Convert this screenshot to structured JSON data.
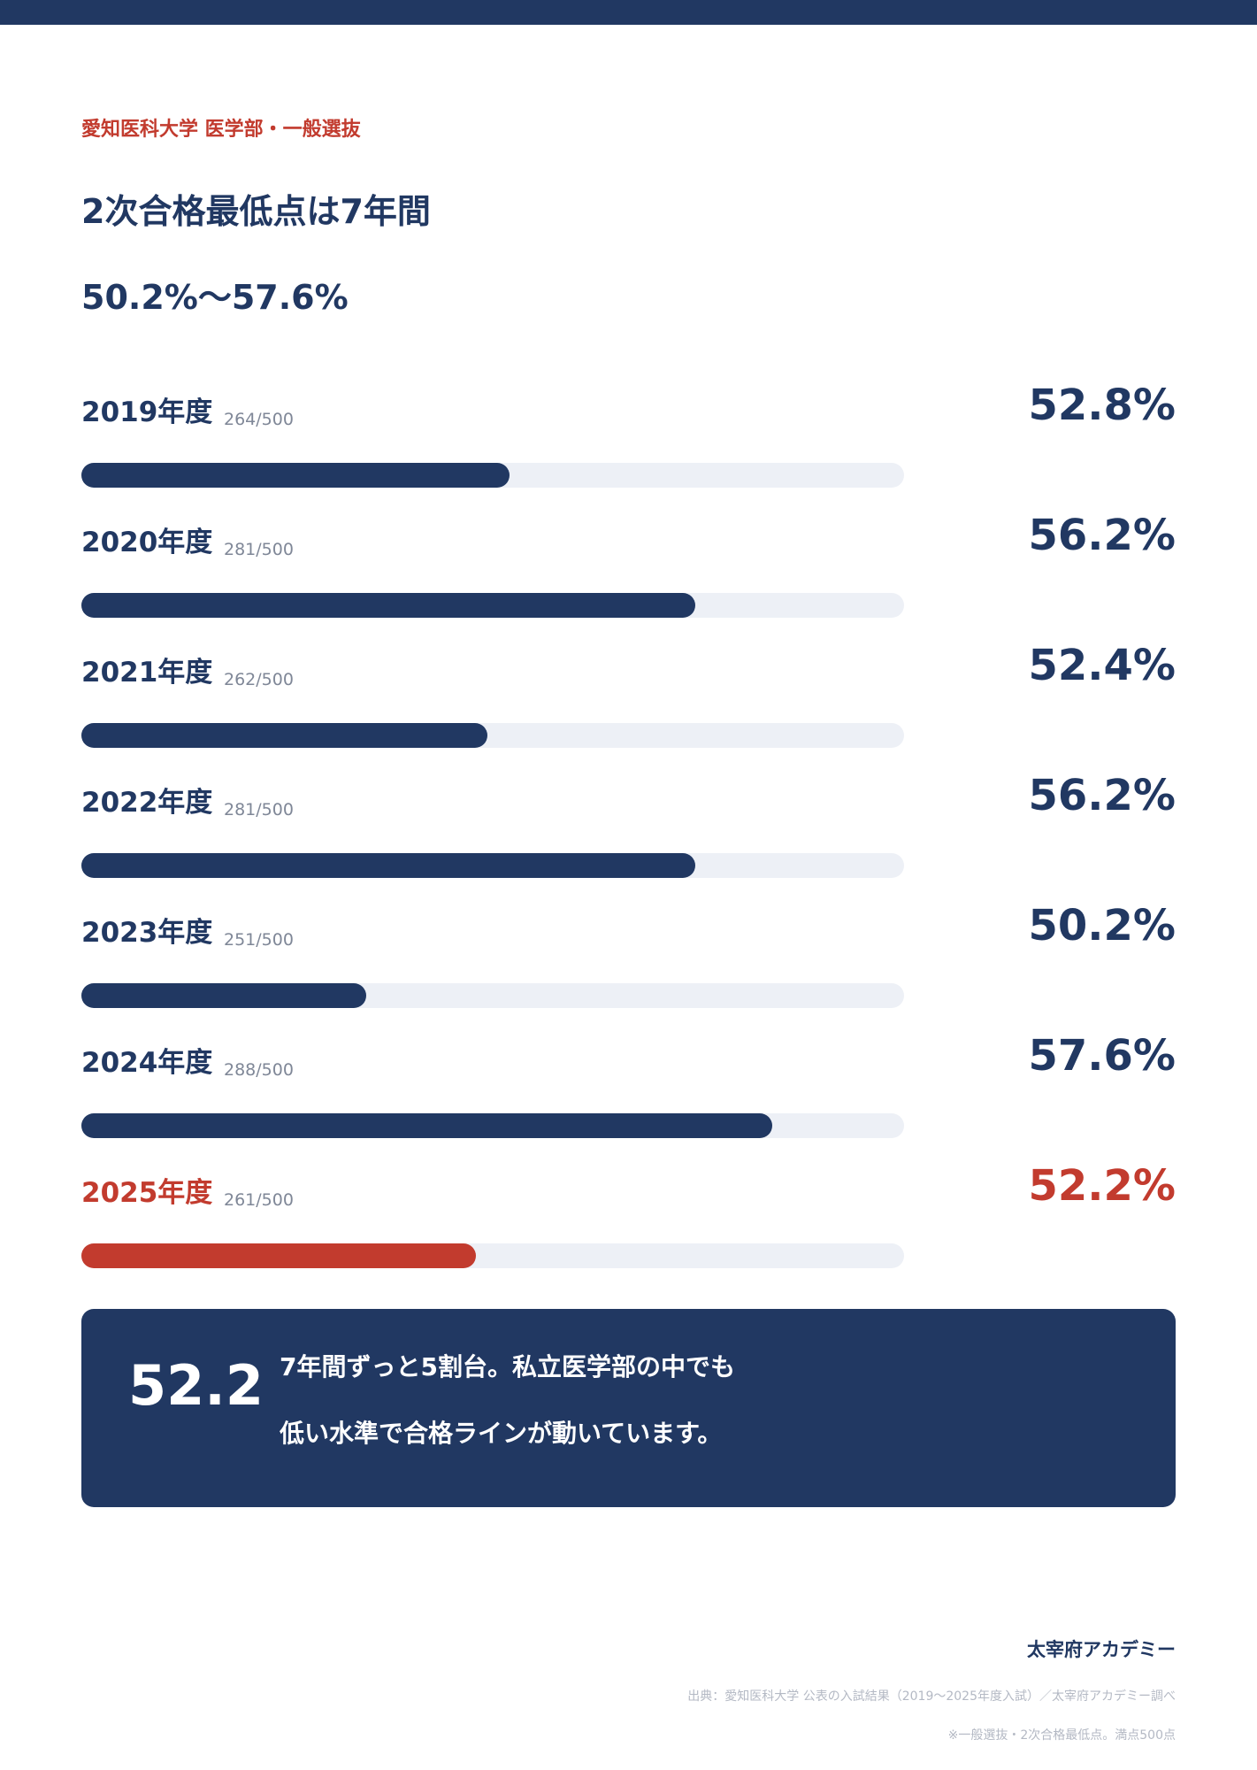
{
  "header": {
    "eyebrow": "愛知医科大学 医学部・一般選抜",
    "title": "2次合格最低点は7年間",
    "subtitle": "50.2%〜57.6%"
  },
  "colors": {
    "navy": "#213862",
    "accent_red": "#c23b2e",
    "track": "#edf0f6"
  },
  "chart_data": {
    "type": "bar",
    "orientation": "horizontal",
    "title": "2次合格最低点は7年間",
    "subtitle": "50.2%〜57.6%",
    "categories": [
      "2019年度",
      "2020年度",
      "2021年度",
      "2022年度",
      "2023年度",
      "2024年度",
      "2025年度"
    ],
    "scores": [
      "264/500",
      "281/500",
      "262/500",
      "281/500",
      "251/500",
      "288/500",
      "261/500"
    ],
    "labels": [
      "52.8%",
      "56.2%",
      "52.4%",
      "56.2%",
      "50.2%",
      "57.6%",
      "52.2%"
    ],
    "values": [
      52.8,
      56.2,
      52.4,
      56.2,
      50.2,
      57.6,
      52.2
    ],
    "xlim": [
      45,
      60
    ],
    "highlight_index": 6,
    "grid": false,
    "legend": "none"
  },
  "callout": {
    "number": "52.2",
    "line1": "7年間ずっと5割台。私立医学部の中でも",
    "line2": "低い水準で合格ラインが動いています。"
  },
  "footer": {
    "brand": "太宰府アカデミー",
    "source": "出典：愛知医科大学 公表の入試結果（2019〜2025年度入試）／太宰府アカデミー調べ",
    "note": "※一般選抜・2次合格最低点。満点500点"
  }
}
